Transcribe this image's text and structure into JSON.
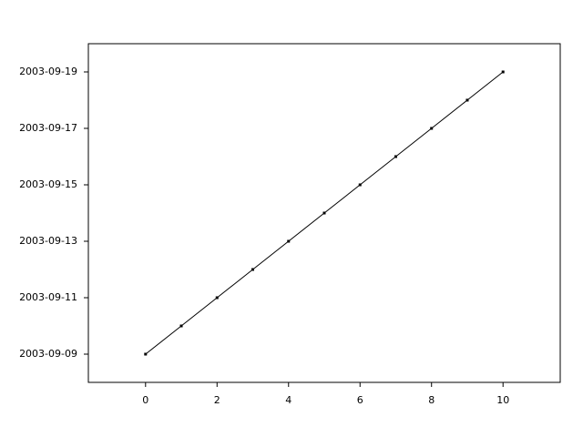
{
  "chart_data": {
    "type": "line",
    "x": [
      0,
      1,
      2,
      3,
      4,
      5,
      6,
      7,
      8,
      9,
      10
    ],
    "series": [
      {
        "color": "#000000",
        "values": [
          "2003-09-09",
          "2003-09-10",
          "2003-09-11",
          "2003-09-12",
          "2003-09-13",
          "2003-09-14",
          "2003-09-15",
          "2003-09-16",
          "2003-09-17",
          "2003-09-18",
          "2003-09-19"
        ]
      }
    ],
    "xlim": [
      -1.6,
      11.6
    ],
    "xticks": [
      0,
      2,
      4,
      6,
      8,
      10
    ],
    "ylim": [
      "2003-09-08",
      "2003-09-20"
    ],
    "yticks": [
      "2003-09-09",
      "2003-09-11",
      "2003-09-13",
      "2003-09-15",
      "2003-09-17",
      "2003-09-19"
    ]
  }
}
